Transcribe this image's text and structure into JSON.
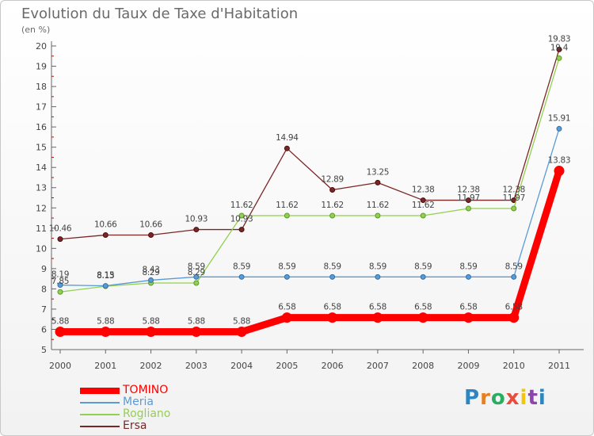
{
  "title": "Evolution du Taux de Taxe d'Habitation",
  "subtitle": "(en %)",
  "brand": {
    "text": "Proxiti",
    "letters": [
      {
        "ch": "P",
        "color": "#2e86c1"
      },
      {
        "ch": "r",
        "color": "#e67e22"
      },
      {
        "ch": "o",
        "color": "#27ae60"
      },
      {
        "ch": "x",
        "color": "#e74c3c"
      },
      {
        "ch": "i",
        "color": "#f1c40f"
      },
      {
        "ch": "t",
        "color": "#8e44ad"
      },
      {
        "ch": "i",
        "color": "#2e86c1"
      }
    ]
  },
  "chart_data": {
    "type": "line",
    "title": "Evolution du Taux de Taxe d'Habitation",
    "ylabel": "(en %)",
    "xlabel": "",
    "x": [
      "2000",
      "2001",
      "2002",
      "2003",
      "2004",
      "2005",
      "2006",
      "2007",
      "2008",
      "2009",
      "2010",
      "2011"
    ],
    "ylim": [
      5,
      20
    ],
    "yticks": [
      5,
      6,
      7,
      8,
      9,
      10,
      11,
      12,
      13,
      14,
      15,
      16,
      17,
      18,
      19,
      20
    ],
    "grid": false,
    "legend_position": "bottom-left",
    "series": [
      {
        "name": "TOMINO",
        "color": "#ff0000",
        "values": [
          5.88,
          5.88,
          5.88,
          5.88,
          5.88,
          6.58,
          6.58,
          6.58,
          6.58,
          6.58,
          6.58,
          13.83
        ],
        "labels": [
          "5.88",
          "5.88",
          "5.88",
          "5.88",
          "5.88",
          "6.58",
          "6.58",
          "6.58",
          "6.58",
          "6.58",
          "6.58",
          "13.83"
        ]
      },
      {
        "name": "Meria",
        "color": "#5b9bd5",
        "values": [
          8.19,
          8.15,
          8.43,
          8.59,
          8.59,
          8.59,
          8.59,
          8.59,
          8.59,
          8.59,
          8.59,
          15.91
        ],
        "labels": [
          "8.19",
          "8.15",
          "8.43",
          "8.59",
          "8.59",
          "8.59",
          "8.59",
          "8.59",
          "8.59",
          "8.59",
          "8.59",
          "15.91"
        ]
      },
      {
        "name": "Rogliano",
        "color": "#92d050",
        "values": [
          7.85,
          8.13,
          8.29,
          8.29,
          11.62,
          11.62,
          11.62,
          11.62,
          11.62,
          11.97,
          11.97,
          19.4
        ],
        "labels": [
          "7.85",
          "8.13",
          "8.29",
          "8.29",
          "11.62",
          "11.62",
          "11.62",
          "11.62",
          "11.62",
          "11.97",
          "11.97",
          "19.4"
        ]
      },
      {
        "name": "Ersa",
        "color": "#7b2626",
        "values": [
          10.46,
          10.66,
          10.66,
          10.93,
          10.93,
          14.94,
          12.89,
          13.25,
          12.38,
          12.38,
          12.38,
          19.83
        ],
        "labels": [
          "10.46",
          "10.66",
          "10.66",
          "10.93",
          "10.93",
          "14.94",
          "12.89",
          "13.25",
          "12.38",
          "12.38",
          "12.38",
          "19.83"
        ]
      }
    ]
  }
}
